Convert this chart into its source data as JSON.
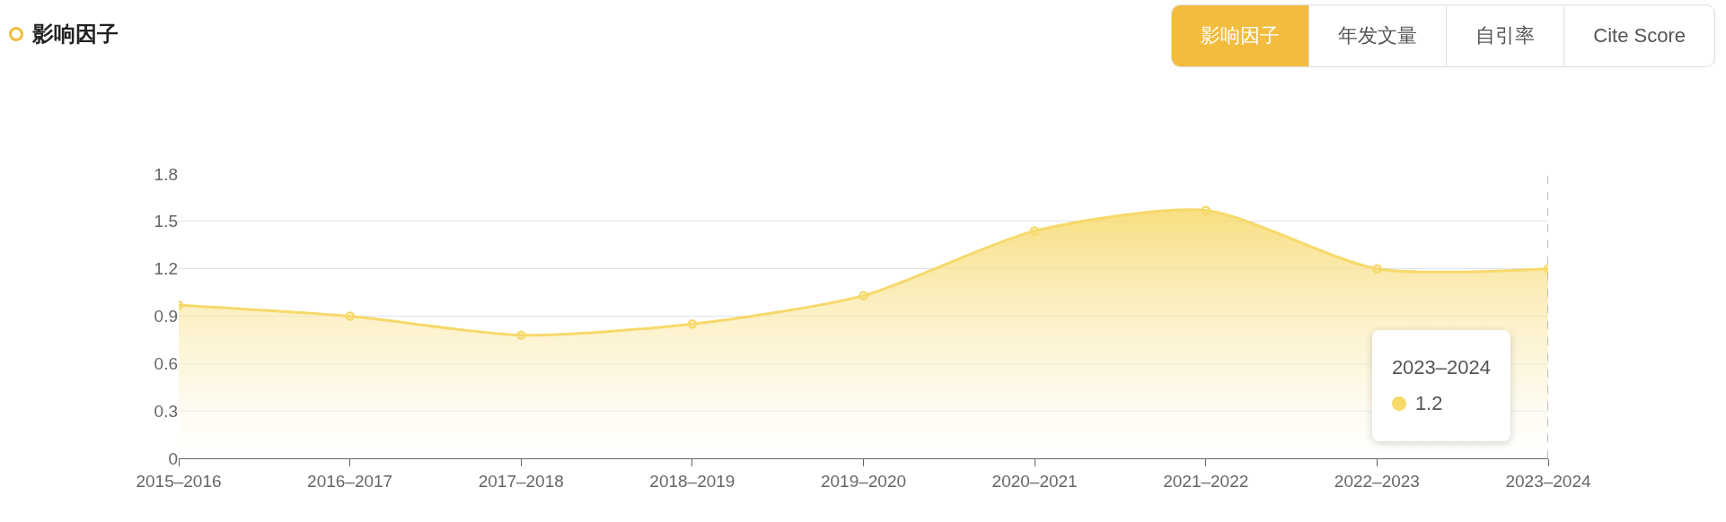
{
  "chart_data": {
    "type": "area",
    "title": "影响因子",
    "categories": [
      "2015–2016",
      "2016–2017",
      "2017–2018",
      "2018–2019",
      "2019–2020",
      "2020–2021",
      "2021–2022",
      "2022–2023",
      "2023–2024"
    ],
    "series": [
      {
        "color": "#f7d96a",
        "values": [
          0.97,
          0.9,
          0.78,
          0.85,
          1.03,
          1.44,
          1.57,
          1.2,
          1.2
        ]
      }
    ],
    "ylim": [
      0,
      1.8
    ],
    "yticks": [
      0,
      0.3,
      0.6,
      0.9,
      1.2,
      1.5,
      1.8
    ],
    "grid": "y",
    "marker": "circle",
    "line_style": "solid",
    "ref_lines": [
      {
        "axis": "x",
        "value": "2023–2024",
        "color": "#aaaaaa",
        "line_style": "dashed"
      }
    ],
    "annotations": [
      "影响因子",
      "年发文量",
      "自引率",
      "Cite Score",
      "2023–2024\n1.2"
    ]
  }
}
